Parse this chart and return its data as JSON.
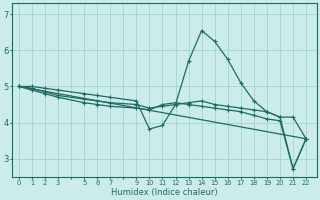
{
  "xlabel": "Humidex (Indice chaleur)",
  "bg_color": "#cbecea",
  "grid_color": "#a8d8d4",
  "line_color": "#1e6b62",
  "xtick_labels": [
    "0",
    "1",
    "2",
    "3",
    "",
    "5",
    "6",
    "7",
    "",
    "9",
    "10",
    "11",
    "12",
    "13",
    "14",
    "15",
    "16",
    "17",
    "18",
    "19",
    "20",
    "21",
    "22"
  ],
  "xtick_positions": [
    0,
    1,
    2,
    3,
    4,
    5,
    6,
    7,
    8,
    9,
    10,
    11,
    12,
    13,
    14,
    15,
    16,
    17,
    18,
    19,
    20,
    21,
    22
  ],
  "ylim": [
    2.5,
    7.3
  ],
  "xlim": [
    -0.5,
    22.8
  ],
  "line1_x": [
    0,
    1,
    2,
    3,
    5,
    6,
    7,
    9,
    10,
    11,
    12,
    13,
    14,
    15,
    16,
    17,
    18,
    19,
    20,
    21,
    22
  ],
  "line1_y": [
    5.0,
    5.0,
    4.95,
    4.9,
    4.8,
    4.75,
    4.7,
    4.6,
    3.82,
    3.92,
    4.5,
    5.7,
    6.55,
    6.25,
    5.75,
    5.1,
    4.6,
    4.3,
    4.15,
    4.15,
    3.55
  ],
  "line2_x": [
    0,
    1,
    2,
    3,
    5,
    6,
    7,
    9,
    10,
    11,
    12,
    13,
    14,
    15,
    16,
    17,
    18,
    19,
    20,
    21,
    22
  ],
  "line2_y": [
    5.0,
    4.95,
    4.85,
    4.75,
    4.65,
    4.6,
    4.55,
    4.5,
    4.4,
    4.45,
    4.5,
    4.55,
    4.6,
    4.5,
    4.45,
    4.4,
    4.35,
    4.3,
    4.15,
    2.72,
    3.55
  ],
  "line3_x": [
    0,
    1,
    2,
    3,
    5,
    6,
    7,
    9,
    10,
    11,
    12,
    13,
    14,
    15,
    16,
    17,
    18,
    19,
    20,
    21,
    22
  ],
  "line3_y": [
    5.0,
    4.9,
    4.8,
    4.7,
    4.55,
    4.5,
    4.45,
    4.4,
    4.35,
    4.5,
    4.55,
    4.5,
    4.45,
    4.4,
    4.35,
    4.3,
    4.2,
    4.1,
    4.05,
    2.72,
    3.55
  ],
  "line4_x": [
    0,
    22
  ],
  "line4_y": [
    5.0,
    3.55
  ]
}
